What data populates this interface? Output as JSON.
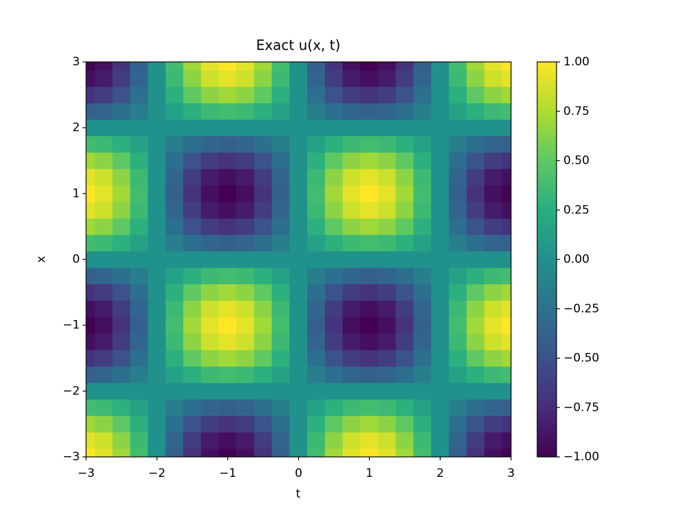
{
  "chart_data": {
    "type": "heatmap",
    "title": "Exact u(x, t)",
    "xlabel": "t",
    "ylabel": "x",
    "colormap": "viridis",
    "clim": [
      -1,
      1
    ],
    "xlim": [
      -3,
      3
    ],
    "ylim": [
      -3,
      3
    ],
    "xticks": [
      {
        "value": -3,
        "label": "−3"
      },
      {
        "value": -2,
        "label": "−2"
      },
      {
        "value": -1,
        "label": "−1"
      },
      0,
      1,
      2,
      3
    ],
    "yticks": [
      {
        "value": -3,
        "label": "−3"
      },
      {
        "value": -2,
        "label": "−2"
      },
      {
        "value": -1,
        "label": "−1"
      },
      0,
      1,
      2,
      3
    ],
    "cticks": [
      {
        "value": -1,
        "label": "−1.00"
      },
      {
        "value": -0.75,
        "label": "−0.75"
      },
      {
        "value": -0.5,
        "label": "−0.50"
      },
      {
        "value": -0.25,
        "label": "−0.25"
      },
      {
        "value": 0,
        "label": "0.00"
      },
      {
        "value": 0.25,
        "label": "0.25"
      },
      {
        "value": 0.5,
        "label": "0.50"
      },
      {
        "value": 0.75,
        "label": "0.75"
      },
      {
        "value": 1,
        "label": "1.00"
      }
    ],
    "x": [
      -3,
      -2.75,
      -2.5,
      -2.25,
      -2,
      -1.75,
      -1.5,
      -1.25,
      -1,
      -0.75,
      -0.5,
      -0.25,
      0,
      0.25,
      0.5,
      0.75,
      1,
      1.25,
      1.5,
      1.75,
      2,
      2.25,
      2.5,
      2.75,
      3
    ],
    "y": [
      -3,
      -2.75,
      -2.5,
      -2.25,
      -2,
      -1.75,
      -1.5,
      -1.25,
      -1,
      -0.75,
      -0.5,
      -0.25,
      0,
      0.25,
      0.5,
      0.75,
      1,
      1.25,
      1.5,
      1.75,
      2,
      2.25,
      2.5,
      2.75,
      3
    ],
    "z": [
      [
        1,
        0.92,
        0.71,
        0.38,
        0,
        -0.38,
        -0.71,
        -0.92,
        -1,
        -0.92,
        -0.71,
        -0.38,
        0,
        0.38,
        0.71,
        0.92,
        1,
        0.92,
        0.71,
        0.38,
        0,
        -0.38,
        -0.71,
        -0.92,
        -1
      ],
      [
        0.92,
        0.85,
        0.65,
        0.35,
        0,
        -0.35,
        -0.65,
        -0.85,
        -0.92,
        -0.85,
        -0.65,
        -0.35,
        0,
        0.35,
        0.65,
        0.85,
        0.92,
        0.85,
        0.65,
        0.35,
        0,
        -0.35,
        -0.65,
        -0.85,
        -0.92
      ],
      [
        0.71,
        0.65,
        0.5,
        0.27,
        0,
        -0.27,
        -0.5,
        -0.65,
        -0.71,
        -0.65,
        -0.5,
        -0.27,
        0,
        0.27,
        0.5,
        0.65,
        0.71,
        0.65,
        0.5,
        0.27,
        0,
        -0.27,
        -0.5,
        -0.65,
        -0.71
      ],
      [
        0.38,
        0.35,
        0.27,
        0.15,
        0,
        -0.15,
        -0.27,
        -0.35,
        -0.38,
        -0.35,
        -0.27,
        -0.15,
        0,
        0.15,
        0.27,
        0.35,
        0.38,
        0.35,
        0.27,
        0.15,
        0,
        -0.15,
        -0.27,
        -0.35,
        -0.38
      ],
      [
        0,
        0,
        0,
        0,
        0,
        0,
        0,
        0,
        0,
        0,
        0,
        0,
        0,
        0,
        0,
        0,
        0,
        0,
        0,
        0,
        0,
        0,
        0,
        0,
        0
      ],
      [
        -0.38,
        -0.35,
        -0.27,
        -0.15,
        0,
        0.15,
        0.27,
        0.35,
        0.38,
        0.35,
        0.27,
        0.15,
        0,
        -0.15,
        -0.27,
        -0.35,
        -0.38,
        -0.35,
        -0.27,
        -0.15,
        0,
        0.15,
        0.27,
        0.35,
        0.38
      ],
      [
        -0.71,
        -0.65,
        -0.5,
        -0.27,
        0,
        0.27,
        0.5,
        0.65,
        0.71,
        0.65,
        0.5,
        0.27,
        0,
        -0.27,
        -0.5,
        -0.65,
        -0.71,
        -0.65,
        -0.5,
        -0.27,
        0,
        0.27,
        0.5,
        0.65,
        0.71
      ],
      [
        -0.92,
        -0.85,
        -0.65,
        -0.35,
        0,
        0.35,
        0.65,
        0.85,
        0.92,
        0.85,
        0.65,
        0.35,
        0,
        -0.35,
        -0.65,
        -0.85,
        -0.92,
        -0.85,
        -0.65,
        -0.35,
        0,
        0.35,
        0.65,
        0.85,
        0.92
      ],
      [
        -1,
        -0.92,
        -0.71,
        -0.38,
        0,
        0.38,
        0.71,
        0.92,
        1,
        0.92,
        0.71,
        0.38,
        0,
        -0.38,
        -0.71,
        -0.92,
        -1,
        -0.92,
        -0.71,
        -0.38,
        0,
        0.38,
        0.71,
        0.92,
        1
      ],
      [
        -0.92,
        -0.85,
        -0.65,
        -0.35,
        0,
        0.35,
        0.65,
        0.85,
        0.92,
        0.85,
        0.65,
        0.35,
        0,
        -0.35,
        -0.65,
        -0.85,
        -0.92,
        -0.85,
        -0.65,
        -0.35,
        0,
        0.35,
        0.65,
        0.85,
        0.92
      ],
      [
        -0.71,
        -0.65,
        -0.5,
        -0.27,
        0,
        0.27,
        0.5,
        0.65,
        0.71,
        0.65,
        0.5,
        0.27,
        0,
        -0.27,
        -0.5,
        -0.65,
        -0.71,
        -0.65,
        -0.5,
        -0.27,
        0,
        0.27,
        0.5,
        0.65,
        0.71
      ],
      [
        -0.38,
        -0.35,
        -0.27,
        -0.15,
        0,
        0.15,
        0.27,
        0.35,
        0.38,
        0.35,
        0.27,
        0.15,
        0,
        -0.15,
        -0.27,
        -0.35,
        -0.38,
        -0.35,
        -0.27,
        -0.15,
        0,
        0.15,
        0.27,
        0.35,
        0.38
      ],
      [
        0,
        0,
        0,
        0,
        0,
        0,
        0,
        0,
        0,
        0,
        0,
        0,
        0,
        0,
        0,
        0,
        0,
        0,
        0,
        0,
        0,
        0,
        0,
        0,
        0
      ],
      [
        0.38,
        0.35,
        0.27,
        0.15,
        0,
        -0.15,
        -0.27,
        -0.35,
        -0.38,
        -0.35,
        -0.27,
        -0.15,
        0,
        0.15,
        0.27,
        0.35,
        0.38,
        0.35,
        0.27,
        0.15,
        0,
        -0.15,
        -0.27,
        -0.35,
        -0.38
      ],
      [
        0.71,
        0.65,
        0.5,
        0.27,
        0,
        -0.27,
        -0.5,
        -0.65,
        -0.71,
        -0.65,
        -0.5,
        -0.27,
        0,
        0.27,
        0.5,
        0.65,
        0.71,
        0.65,
        0.5,
        0.27,
        0,
        -0.27,
        -0.5,
        -0.65,
        -0.71
      ],
      [
        0.92,
        0.85,
        0.65,
        0.35,
        0,
        -0.35,
        -0.65,
        -0.85,
        -0.92,
        -0.85,
        -0.65,
        -0.35,
        0,
        0.35,
        0.65,
        0.85,
        0.92,
        0.85,
        0.65,
        0.35,
        0,
        -0.35,
        -0.65,
        -0.85,
        -0.92
      ],
      [
        1,
        0.92,
        0.71,
        0.38,
        0,
        -0.38,
        -0.71,
        -0.92,
        -1,
        -0.92,
        -0.71,
        -0.38,
        0,
        0.38,
        0.71,
        0.92,
        1,
        0.92,
        0.71,
        0.38,
        0,
        -0.38,
        -0.71,
        -0.92,
        -1
      ],
      [
        0.92,
        0.85,
        0.65,
        0.35,
        0,
        -0.35,
        -0.65,
        -0.85,
        -0.92,
        -0.85,
        -0.65,
        -0.35,
        0,
        0.35,
        0.65,
        0.85,
        0.92,
        0.85,
        0.65,
        0.35,
        0,
        -0.35,
        -0.65,
        -0.85,
        -0.92
      ],
      [
        0.71,
        0.65,
        0.5,
        0.27,
        0,
        -0.27,
        -0.5,
        -0.65,
        -0.71,
        -0.65,
        -0.5,
        -0.27,
        0,
        0.27,
        0.5,
        0.65,
        0.71,
        0.65,
        0.5,
        0.27,
        0,
        -0.27,
        -0.5,
        -0.65,
        -0.71
      ],
      [
        0.38,
        0.35,
        0.27,
        0.15,
        0,
        -0.15,
        -0.27,
        -0.35,
        -0.38,
        -0.35,
        -0.27,
        -0.15,
        0,
        0.15,
        0.27,
        0.35,
        0.38,
        0.35,
        0.27,
        0.15,
        0,
        -0.15,
        -0.27,
        -0.35,
        -0.38
      ],
      [
        0,
        0,
        0,
        0,
        0,
        0,
        0,
        0,
        0,
        0,
        0,
        0,
        0,
        0,
        0,
        0,
        0,
        0,
        0,
        0,
        0,
        0,
        0,
        0,
        0
      ],
      [
        -0.38,
        -0.35,
        -0.27,
        -0.15,
        0,
        0.15,
        0.27,
        0.35,
        0.38,
        0.35,
        0.27,
        0.15,
        0,
        -0.15,
        -0.27,
        -0.35,
        -0.38,
        -0.35,
        -0.27,
        -0.15,
        0,
        0.15,
        0.27,
        0.35,
        0.38
      ],
      [
        -0.71,
        -0.65,
        -0.5,
        -0.27,
        0,
        0.27,
        0.5,
        0.65,
        0.71,
        0.65,
        0.5,
        0.27,
        0,
        -0.27,
        -0.5,
        -0.65,
        -0.71,
        -0.65,
        -0.5,
        -0.27,
        0,
        0.27,
        0.5,
        0.65,
        0.71
      ],
      [
        -0.92,
        -0.85,
        -0.65,
        -0.35,
        0,
        0.35,
        0.65,
        0.85,
        0.92,
        0.85,
        0.65,
        0.35,
        0,
        -0.35,
        -0.65,
        -0.85,
        -0.92,
        -0.85,
        -0.65,
        -0.35,
        0,
        0.35,
        0.65,
        0.85,
        0.92
      ],
      [
        -1,
        -0.92,
        -0.71,
        -0.38,
        0,
        0.38,
        0.71,
        0.92,
        1,
        0.92,
        0.71,
        0.38,
        0,
        -0.38,
        -0.71,
        -0.92,
        -1,
        -0.92,
        -0.71,
        -0.38,
        0,
        0.38,
        0.71,
        0.92,
        1
      ]
    ]
  }
}
